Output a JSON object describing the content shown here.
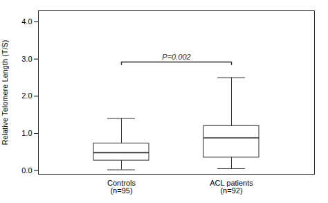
{
  "chart_data": {
    "type": "box",
    "categories": [
      "Controls",
      "ACL patients"
    ],
    "sublabels": [
      "(n=95)",
      "(n=92)"
    ],
    "whisker_low": [
      0.02,
      0.05
    ],
    "q1": [
      0.27,
      0.35
    ],
    "median": [
      0.48,
      0.88
    ],
    "q3": [
      0.73,
      1.2
    ],
    "whisker_high": [
      1.4,
      2.5
    ],
    "ylabel": "Relative Telomere Length (T/S)",
    "ylim": [
      -0.1,
      4.3
    ],
    "yticks": [
      0,
      1,
      2,
      3,
      4
    ],
    "annotations": [
      {
        "text": "P=0.002",
        "y": 2.92,
        "from": "Controls",
        "to": "ACL patients"
      }
    ],
    "color": "#2b2b2b"
  }
}
